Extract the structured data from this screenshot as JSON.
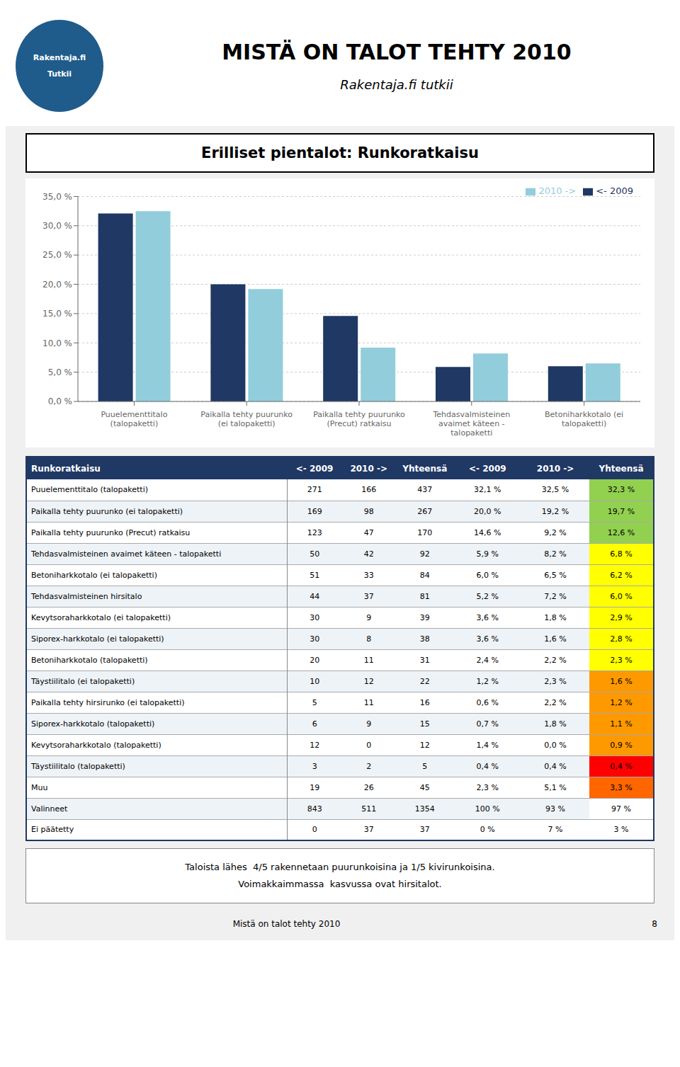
{
  "chart_data": {
    "type": "bar",
    "title": "Erilliset pientalot: Runkoratkaisu",
    "page_title": "MISTÄ ON TALOT TEHTY 2010",
    "subtitle": "Rakentaja.fi tutkii",
    "logo_text": [
      "Rakentaja.fi",
      "Tutkii"
    ],
    "categories": [
      "Puuelementtitalo\n(talopaketti)",
      "Paikalla tehty puurunko\n(ei talopaketti)",
      "Paikalla tehty puurunko\n(Precut) ratkaisu",
      "Tehdasvalmisteinen\navaimet käteen -\ntalopaketti",
      "Betoniharkkotalo (ei\ntalopaketti)"
    ],
    "series": [
      {
        "name": "<- 2009",
        "color": "#1F3864",
        "values": [
          32.1,
          20.0,
          14.6,
          5.9,
          6.0
        ]
      },
      {
        "name": "2010 ->",
        "color": "#92CDDC",
        "values": [
          32.5,
          19.2,
          9.2,
          8.2,
          6.5
        ]
      }
    ],
    "ylim": [
      0,
      35
    ],
    "yticks": [
      {
        "value": 0,
        "label": "0,0 %"
      },
      {
        "value": 5,
        "label": "5,0 %"
      },
      {
        "value": 10,
        "label": "10,0 %"
      },
      {
        "value": 15,
        "label": "15,0 %"
      },
      {
        "value": 20,
        "label": "20,0 %"
      },
      {
        "value": 25,
        "label": "25,0 %"
      },
      {
        "value": 30,
        "label": "30,0 %"
      },
      {
        "value": 35,
        "label": "35,0 %"
      }
    ],
    "grid": true,
    "legend": "upper right",
    "table": {
      "header": [
        "Runkoratkaisu",
        "<- 2009",
        "2010 ->",
        "Yhteensä",
        "<- 2009",
        "2010 ->",
        "Yhteensä"
      ],
      "rows": [
        [
          "Puuelementtitalo (talopaketti)",
          "271",
          "166",
          "437",
          "32,1 %",
          "32,5 %",
          "32,3 %"
        ],
        [
          "Paikalla tehty puurunko (ei talopaketti)",
          "169",
          "98",
          "267",
          "20,0 %",
          "19,2 %",
          "19,7 %"
        ],
        [
          "Paikalla tehty puurunko (Precut) ratkaisu",
          "123",
          "47",
          "170",
          "14,6 %",
          "9,2 %",
          "12,6 %"
        ],
        [
          "Tehdasvalmisteinen avaimet käteen - talopaketti",
          "50",
          "42",
          "92",
          "5,9 %",
          "8,2 %",
          "6,8 %"
        ],
        [
          "Betoniharkkotalo (ei talopaketti)",
          "51",
          "33",
          "84",
          "6,0 %",
          "6,5 %",
          "6,2 %"
        ],
        [
          "Tehdasvalmisteinen hirsitalo",
          "44",
          "37",
          "81",
          "5,2 %",
          "7,2 %",
          "6,0 %"
        ],
        [
          "Kevytsoraharkkotalo (ei talopaketti)",
          "30",
          "9",
          "39",
          "3,6 %",
          "1,8 %",
          "2,9 %"
        ],
        [
          "Siporex-harkkotalo (ei talopaketti)",
          "30",
          "8",
          "38",
          "3,6 %",
          "1,6 %",
          "2,8 %"
        ],
        [
          "Betoniharkkotalo (talopaketti)",
          "20",
          "11",
          "31",
          "2,4 %",
          "2,2 %",
          "2,3 %"
        ],
        [
          "Täystiilitalo (ei talopaketti)",
          "10",
          "12",
          "22",
          "1,2 %",
          "2,3 %",
          "1,6 %"
        ],
        [
          "Paikalla tehty hirsirunko (ei talopaketti)",
          "5",
          "11",
          "16",
          "0,6 %",
          "2,2 %",
          "1,2 %"
        ],
        [
          "Siporex-harkkotalo (talopaketti)",
          "6",
          "9",
          "15",
          "0,7 %",
          "1,8 %",
          "1,1 %"
        ],
        [
          "Kevytsoraharkkotalo (talopaketti)",
          "12",
          "0",
          "12",
          "1,4 %",
          "0,0 %",
          "0,9 %"
        ],
        [
          "Täystiilitalo (talopaketti)",
          "3",
          "2",
          "5",
          "0,4 %",
          "0,4 %",
          "0,4 %"
        ],
        [
          "Muu",
          "19",
          "26",
          "45",
          "2,3 %",
          "5,1 %",
          "3,3 %"
        ],
        [
          "Valinneet",
          "843",
          "511",
          "1354",
          "100 %",
          "93 %",
          "97 %"
        ],
        [
          "Ei päätetty",
          "0",
          "37",
          "37",
          "0 %",
          "7 %",
          "3 %"
        ]
      ],
      "last_col_colors": [
        "#92D050",
        "#92D050",
        "#92D050",
        "#FFFF00",
        "#FFFF00",
        "#FFFF00",
        "#FFFF00",
        "#FFFF00",
        "#FFFF00",
        "#FF9900",
        "#FF9900",
        "#FF9900",
        "#FF9900",
        "#FF0000",
        "#FF6600",
        "#FFFFFF",
        "#FFFFFF"
      ]
    },
    "annotations": [
      "Taloista lähes  4/5 rakennetaan puurunkoisina ja 1/5 kivirunkoisina.",
      "Voimakkaimmassa  kasvussa ovat hirsitalot."
    ],
    "page_footer": "Mistä on talot tehty 2010",
    "page_number": "8"
  }
}
